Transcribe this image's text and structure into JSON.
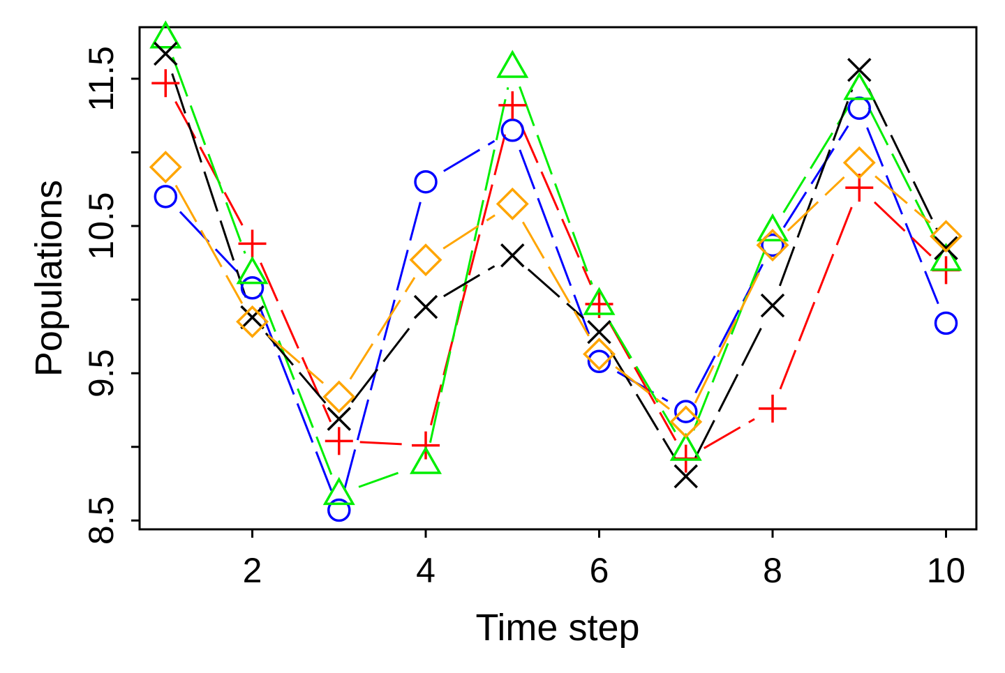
{
  "chart_data": {
    "type": "line",
    "title": "",
    "xlabel": "Time step",
    "ylabel": "Populations",
    "x": [
      1,
      2,
      3,
      4,
      5,
      6,
      7,
      8,
      9,
      10
    ],
    "xlim": [
      0.7,
      10.35
    ],
    "ylim": [
      8.44,
      11.85
    ],
    "xticks": [
      2,
      4,
      6,
      8,
      10
    ],
    "xtick_labels": [
      "2",
      "4",
      "6",
      "8",
      "10"
    ],
    "yticks": [
      8.5,
      9.0,
      9.5,
      10.0,
      10.5,
      11.0,
      11.5
    ],
    "ytick_labels": [
      "8.5",
      "",
      "9.5",
      "",
      "10.5",
      "",
      "11.5"
    ],
    "grid": false,
    "legend": "none",
    "line_style": "dashed",
    "series": [
      {
        "color": "#0000ff",
        "marker": "circle",
        "values": [
          10.7,
          10.08,
          8.57,
          10.8,
          11.15,
          9.58,
          9.24,
          10.37,
          11.3,
          9.84
        ]
      },
      {
        "color": "#ff0000",
        "marker": "plus",
        "values": [
          11.47,
          10.38,
          9.04,
          9.01,
          11.32,
          9.97,
          8.92,
          9.26,
          10.76,
          10.2
        ]
      },
      {
        "color": "#00ee00",
        "marker": "triangle",
        "values": [
          11.78,
          10.18,
          8.68,
          8.89,
          11.58,
          9.97,
          8.98,
          10.47,
          11.43,
          10.27
        ]
      },
      {
        "color": "#000000",
        "marker": "cross",
        "values": [
          11.67,
          9.88,
          9.19,
          9.95,
          10.3,
          9.78,
          8.8,
          9.96,
          11.56,
          10.35
        ]
      },
      {
        "color": "#ffa500",
        "marker": "diamond",
        "values": [
          10.9,
          9.85,
          9.34,
          10.27,
          10.65,
          9.63,
          9.17,
          10.37,
          10.93,
          10.43
        ]
      }
    ]
  }
}
